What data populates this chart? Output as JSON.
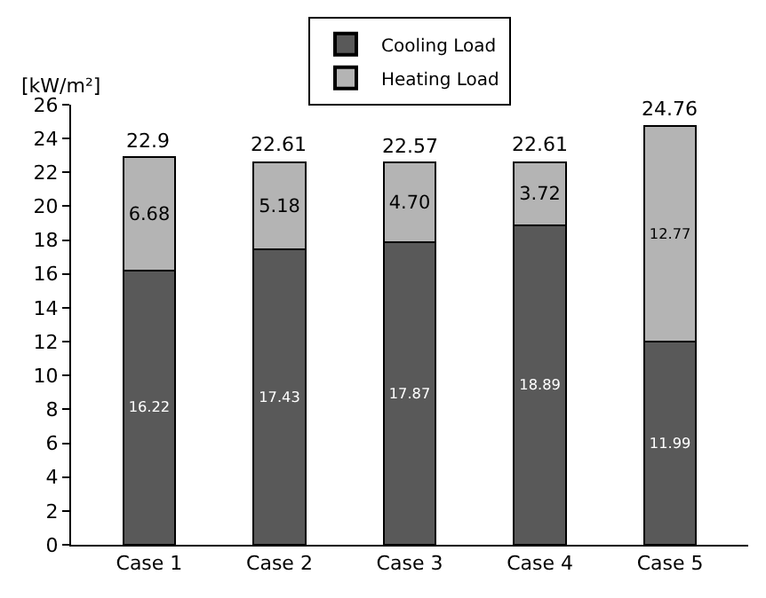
{
  "chart_data": {
    "type": "bar",
    "stacked": true,
    "ylabel": "[kW/m²]",
    "categories": [
      "Case 1",
      "Case 2",
      "Case 3",
      "Case 4",
      "Case 5"
    ],
    "series": [
      {
        "name": "Cooling Load",
        "color": "#595959",
        "values": [
          16.22,
          17.43,
          17.87,
          18.89,
          11.99
        ],
        "value_labels": [
          "16.22",
          "17.43",
          "17.87",
          "18.89",
          "11.99"
        ]
      },
      {
        "name": "Heating Load",
        "color": "#b4b4b4",
        "values": [
          6.68,
          5.18,
          4.7,
          3.72,
          12.77
        ],
        "value_labels": [
          "6.68",
          "5.18",
          "4.70",
          "3.72",
          "12.77"
        ]
      }
    ],
    "totals": [
      "22.9",
      "22.61",
      "22.57",
      "22.61",
      "24.76"
    ],
    "ylim": [
      0,
      26
    ],
    "yticks": [
      0,
      2,
      4,
      6,
      8,
      10,
      12,
      14,
      16,
      18,
      20,
      22,
      24,
      26
    ],
    "grid": false,
    "legend": "top"
  }
}
